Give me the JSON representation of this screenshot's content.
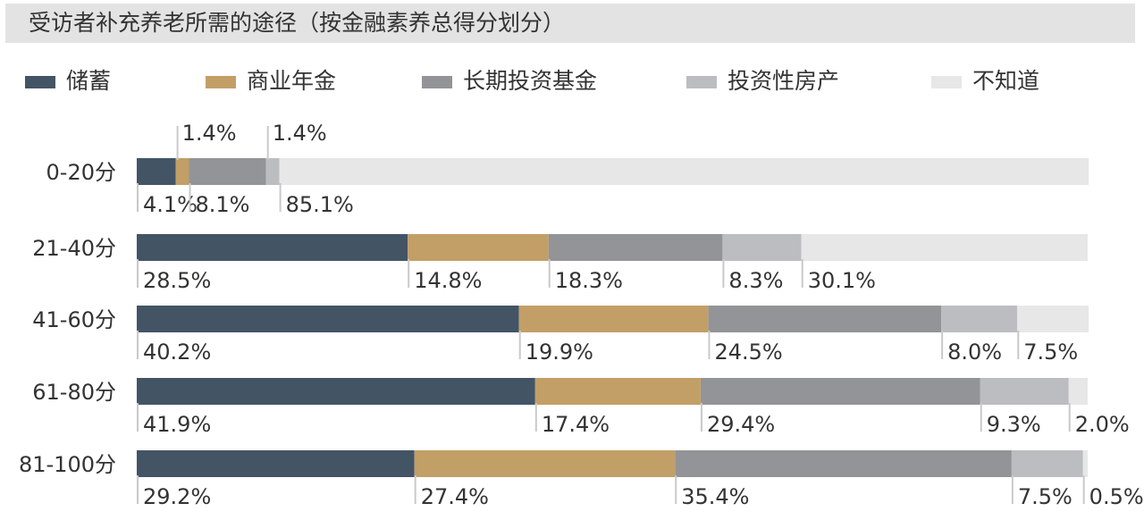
{
  "header": {
    "title": "受访者补充养老所需的途径（按金融素养总得分划分）"
  },
  "chart_data": {
    "type": "bar",
    "orientation": "horizontal",
    "stacked": true,
    "title": "受访者补充养老所需的途径（按金融素养总得分划分）",
    "xlabel": "",
    "ylabel": "",
    "xlim": [
      0,
      100
    ],
    "legend_position": "top",
    "categories": [
      "0-20分",
      "21-40分",
      "41-60分",
      "61-80分",
      "81-100分"
    ],
    "series": [
      {
        "name": "储蓄",
        "color": "#435465",
        "values": [
          4.1,
          28.5,
          40.2,
          41.9,
          29.2
        ]
      },
      {
        "name": "商业年金",
        "color": "#c29f66",
        "values": [
          1.4,
          14.8,
          19.9,
          17.4,
          27.4
        ]
      },
      {
        "name": "长期投资基金",
        "color": "#939497",
        "values": [
          8.1,
          18.3,
          24.5,
          29.4,
          35.4
        ]
      },
      {
        "name": "投资性房产",
        "color": "#bcbdc1",
        "values": [
          1.4,
          8.3,
          8.0,
          9.3,
          7.5
        ]
      },
      {
        "name": "不知道",
        "color": "#e7e7e8",
        "values": [
          85.1,
          30.1,
          7.5,
          2.0,
          0.5
        ]
      }
    ],
    "value_labels": [
      [
        "4.1%",
        "1.4%",
        "8.1%",
        "1.4%",
        "85.1%"
      ],
      [
        "28.5%",
        "14.8%",
        "18.3%",
        "8.3%",
        "30.1%"
      ],
      [
        "40.2%",
        "19.9%",
        "24.5%",
        "8.0%",
        "7.5%"
      ],
      [
        "41.9%",
        "17.4%",
        "29.4%",
        "9.3%",
        "2.0%"
      ],
      [
        "29.2%",
        "27.4%",
        "35.4%",
        "7.5%",
        "0.5%"
      ]
    ]
  }
}
